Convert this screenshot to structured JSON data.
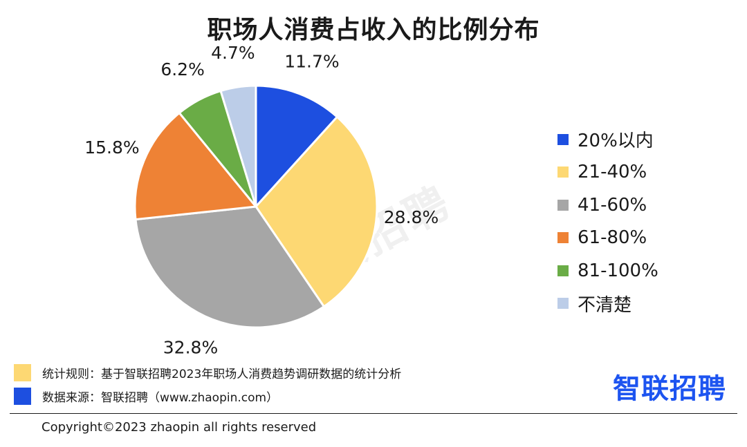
{
  "chart_data": {
    "type": "pie",
    "title": "职场人消费占收入的比例分布",
    "slices": [
      {
        "label": "20%以内",
        "value": 11.7,
        "value_label": "11.7%",
        "color": "#1d4fe0"
      },
      {
        "label": "21-40%",
        "value": 28.8,
        "value_label": "28.8%",
        "color": "#fdd873"
      },
      {
        "label": "41-60%",
        "value": 32.8,
        "value_label": "32.8%",
        "color": "#a6a6a6"
      },
      {
        "label": "61-80%",
        "value": 15.8,
        "value_label": "15.8%",
        "color": "#ee8235"
      },
      {
        "label": "81-100%",
        "value": 6.2,
        "value_label": "6.2%",
        "color": "#6aac46"
      },
      {
        "label": "不清楚",
        "value": 4.7,
        "value_label": "4.7%",
        "color": "#bccde8"
      }
    ],
    "legend_position": "right"
  },
  "notes": {
    "rule_text": "统计规则：基于智联招聘2023年职场人消费趋势调研数据的统计分析",
    "rule_color": "#fdd873",
    "source_text": "数据来源：智联招聘（www.zhaopin.com）",
    "source_color": "#1d4fe0"
  },
  "brand": "智联招聘",
  "watermark": "智联招聘",
  "copyright": "Copyright©2023 zhaopin all rights reserved"
}
